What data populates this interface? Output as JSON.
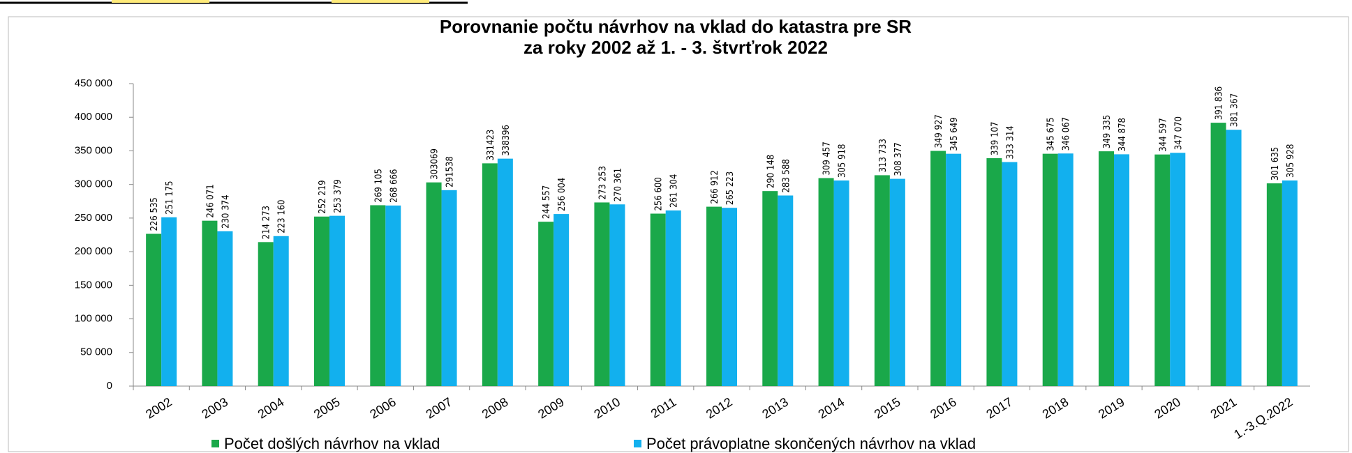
{
  "chart_data": {
    "type": "bar",
    "title": [
      "Porovnanie počtu návrhov na vklad do katastra pre SR",
      "za roky 2002 až 1. - 3. štvrťrok 2022"
    ],
    "categories": [
      "2002",
      "2003",
      "2004",
      "2005",
      "2006",
      "2007",
      "2008",
      "2009",
      "2010",
      "2011",
      "2012",
      "2013",
      "2014",
      "2015",
      "2016",
      "2017",
      "2018",
      "2019",
      "2020",
      "2021",
      "1.-3.Q.2022"
    ],
    "series": [
      {
        "name": "Počet došlých návrhov na vklad",
        "color": "#1aa84a",
        "values": [
          226535,
          246071,
          214273,
          252219,
          269105,
          303069,
          331423,
          244557,
          273253,
          256600,
          266912,
          290148,
          309457,
          313733,
          349927,
          339107,
          345675,
          349335,
          344597,
          391836,
          301635
        ],
        "value_labels": [
          "226 535",
          "246 071",
          "214 273",
          "252 219",
          "269 105",
          "303069",
          "331423",
          "244 557",
          "273 253",
          "256 600",
          "266 912",
          "290 148",
          "309 457",
          "313 733",
          "349 927",
          "339 107",
          "345 675",
          "349 335",
          "344 597",
          "391 836",
          "301 635"
        ]
      },
      {
        "name": "Počet právoplatne skončených návrhov na vklad",
        "color": "#12b0ee",
        "values": [
          251175,
          230374,
          223160,
          253379,
          268666,
          291538,
          338396,
          256004,
          270361,
          261304,
          265223,
          283588,
          305918,
          308377,
          345649,
          333314,
          346067,
          344878,
          347070,
          381367,
          305928
        ],
        "value_labels": [
          "251 175",
          "230 374",
          "223 160",
          "253 379",
          "268 666",
          "291538",
          "338396",
          "256 004",
          "270 361",
          "261 304",
          "265 223",
          "283 588",
          "305 918",
          "308 377",
          "345 649",
          "333 314",
          "346 067",
          "344 878",
          "347 070",
          "381 367",
          "305 928"
        ]
      }
    ],
    "ylim": [
      0,
      450000
    ],
    "yticks": [
      0,
      {
        "value": 50000,
        "label": "50 000"
      },
      {
        "value": 100000,
        "label": "100 000"
      },
      {
        "value": 150000,
        "label": "150 000"
      },
      {
        "value": 200000,
        "label": "200 000"
      },
      {
        "value": 250000,
        "label": "250 000"
      },
      {
        "value": 300000,
        "label": "300 000"
      },
      {
        "value": 350000,
        "label": "350 000"
      },
      {
        "value": 400000,
        "label": "400 000"
      },
      {
        "value": 450000,
        "label": "450 000"
      }
    ],
    "legend": "bottom"
  }
}
